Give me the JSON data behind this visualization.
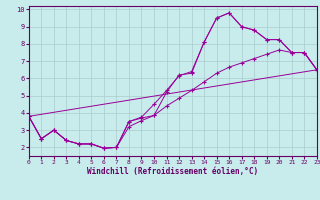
{
  "xlabel": "Windchill (Refroidissement éolien,°C)",
  "background_color": "#c8ecec",
  "line_color": "#990099",
  "grid_color": "#aacccc",
  "xlim": [
    0,
    23
  ],
  "ylim": [
    1.5,
    10.2
  ],
  "xticks": [
    0,
    1,
    2,
    3,
    4,
    5,
    6,
    7,
    8,
    9,
    10,
    11,
    12,
    13,
    14,
    15,
    16,
    17,
    18,
    19,
    20,
    21,
    22,
    23
  ],
  "yticks": [
    2,
    3,
    4,
    5,
    6,
    7,
    8,
    9,
    10
  ],
  "series1_x": [
    0,
    1,
    2,
    3,
    4,
    5,
    6,
    7,
    8,
    9,
    10,
    11,
    12,
    13,
    14,
    15,
    16,
    17,
    18,
    19,
    20,
    21,
    22,
    23
  ],
  "series1_y": [
    3.8,
    2.5,
    3.0,
    2.4,
    2.2,
    2.2,
    1.95,
    2.0,
    3.5,
    3.7,
    3.85,
    5.2,
    6.2,
    6.3,
    8.1,
    9.5,
    9.8,
    9.0,
    8.8,
    8.25,
    8.25,
    7.5,
    7.5,
    6.5
  ],
  "series2_x": [
    0,
    1,
    2,
    3,
    4,
    5,
    6,
    7,
    8,
    9,
    10,
    11,
    12,
    13,
    14,
    15,
    16,
    17,
    18,
    19,
    20,
    21,
    22,
    23
  ],
  "series2_y": [
    3.8,
    2.5,
    3.0,
    2.4,
    2.2,
    2.2,
    1.95,
    2.0,
    3.5,
    3.75,
    4.5,
    5.3,
    6.15,
    6.4,
    8.1,
    9.5,
    9.8,
    9.0,
    8.8,
    8.25,
    8.25,
    7.5,
    7.5,
    6.5
  ],
  "series3_x": [
    0,
    1,
    2,
    3,
    4,
    5,
    6,
    7,
    8,
    9,
    10,
    11,
    12,
    13,
    14,
    15,
    16,
    17,
    18,
    19,
    20,
    21,
    22,
    23
  ],
  "series3_y": [
    3.8,
    2.5,
    3.0,
    2.4,
    2.2,
    2.2,
    1.95,
    2.0,
    3.2,
    3.55,
    3.85,
    4.4,
    4.85,
    5.3,
    5.8,
    6.3,
    6.65,
    6.9,
    7.15,
    7.4,
    7.65,
    7.5,
    7.5,
    6.5
  ],
  "series4_x": [
    0,
    23
  ],
  "series4_y": [
    3.8,
    6.5
  ]
}
